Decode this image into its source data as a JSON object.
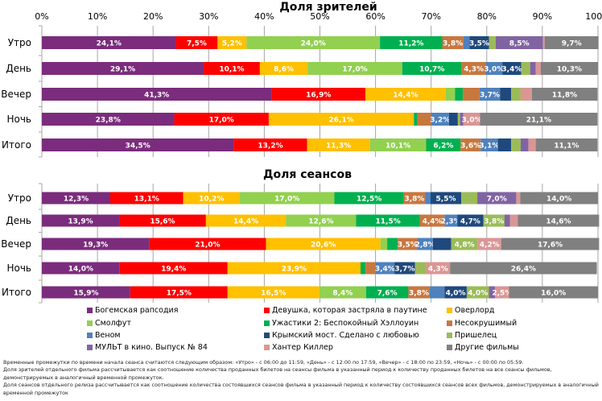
{
  "chart_data": [
    {
      "type": "bar",
      "orientation": "horizontal",
      "stacked": "percent",
      "title": "Доля зрителей",
      "xlabel": "",
      "ylabel": "",
      "xlim": [
        0,
        100
      ],
      "x_ticks": [
        "0%",
        "10%",
        "20%",
        "30%",
        "40%",
        "50%",
        "60%",
        "70%",
        "80%",
        "90%",
        "100%"
      ],
      "grid": true,
      "categories": [
        "Утро",
        "День",
        "Вечер",
        "Ночь",
        "Итого"
      ],
      "series": [
        {
          "name": "Богемская рапсодия",
          "color": "#7B2C7D",
          "values": [
            24.1,
            29.1,
            41.3,
            23.8,
            34.5
          ],
          "labels": [
            "24,1%",
            "29,1%",
            "41,3%",
            "23,8%",
            "34,5%"
          ]
        },
        {
          "name": "Девушка, которая застряла в паутине",
          "color": "#FF0000",
          "values": [
            7.5,
            10.1,
            16.9,
            17.0,
            13.2
          ],
          "labels": [
            "7,5%",
            "10,1%",
            "16,9%",
            "17,0%",
            "13,2%"
          ]
        },
        {
          "name": "Оверлорд",
          "color": "#FFC000",
          "values": [
            5.2,
            8.6,
            14.4,
            26.1,
            11.3
          ],
          "labels": [
            "5,2%",
            "8,6%",
            "14,4%",
            "26,1%",
            "11,3%"
          ]
        },
        {
          "name": "Смолфут",
          "color": "#92D050",
          "values": [
            24.0,
            17.0,
            1.7,
            0.0,
            10.1
          ],
          "labels": [
            "24,0%",
            "17,0%",
            "",
            "",
            "10,1%"
          ]
        },
        {
          "name": "Ужастики 2: Беспокойный Хэллоуин",
          "color": "#00B050",
          "values": [
            11.2,
            10.7,
            1.4,
            0.6,
            6.2
          ],
          "labels": [
            "11,2%",
            "10,7%",
            "",
            "",
            "6,2%"
          ]
        },
        {
          "name": "Несокрушимый",
          "color": "#C8773F",
          "values": [
            3.8,
            4.3,
            3.0,
            2.5,
            3.6
          ],
          "labels": [
            "3,8%",
            "4,3%",
            "",
            "",
            "3,6%"
          ]
        },
        {
          "name": "Веном",
          "color": "#4F81BD",
          "values": [
            1.1,
            3.0,
            3.7,
            3.2,
            3.1
          ],
          "labels": [
            "",
            "3,0%",
            "3,7%",
            "3,2%",
            "3,1%"
          ]
        },
        {
          "name": "Крымский мост. Сделано с любовью",
          "color": "#1F497D",
          "values": [
            3.5,
            3.4,
            2.0,
            1.6,
            2.4
          ],
          "labels": [
            "3,5%",
            "3,4%",
            "",
            "",
            ""
          ]
        },
        {
          "name": "Пришелец",
          "color": "#9BBB59",
          "values": [
            1.2,
            1.6,
            1.7,
            0.4,
            1.7
          ],
          "labels": [
            "",
            "",
            "",
            "",
            ""
          ]
        },
        {
          "name": "МУЛЬТ в кино. Выпуск № 84",
          "color": "#8064A2",
          "values": [
            8.5,
            1.0,
            0.0,
            0.6,
            1.4
          ],
          "labels": [
            "8,5%",
            "",
            "",
            "",
            ""
          ]
        },
        {
          "name": "Хантер Киллер",
          "color": "#DA9694",
          "values": [
            0.3,
            0.9,
            2.0,
            3.0,
            1.3
          ],
          "labels": [
            "",
            "",
            "",
            "3,0%",
            ""
          ]
        },
        {
          "name": "Другие фильмы",
          "color": "#808080",
          "values": [
            9.7,
            10.3,
            11.8,
            21.1,
            11.1
          ],
          "labels": [
            "9,7%",
            "10,3%",
            "11,8%",
            "21,1%",
            "11,1%"
          ]
        }
      ]
    },
    {
      "type": "bar",
      "orientation": "horizontal",
      "stacked": "percent",
      "title": "Доля сеансов",
      "xlabel": "",
      "ylabel": "",
      "xlim": [
        0,
        100
      ],
      "grid": true,
      "categories": [
        "Утро",
        "День",
        "Вечер",
        "Ночь",
        "Итого"
      ],
      "series": [
        {
          "name": "Богемская рапсодия",
          "color": "#7B2C7D",
          "values": [
            12.3,
            13.9,
            19.3,
            14.0,
            15.9
          ],
          "labels": [
            "12,3%",
            "13,9%",
            "19,3%",
            "14,0%",
            "15,9%"
          ]
        },
        {
          "name": "Девушка, которая застряла в паутине",
          "color": "#FF0000",
          "values": [
            13.1,
            15.6,
            21.0,
            19.4,
            17.5
          ],
          "labels": [
            "13,1%",
            "15,6%",
            "21,0%",
            "19,4%",
            "17,5%"
          ]
        },
        {
          "name": "Оверлорд",
          "color": "#FFC000",
          "values": [
            10.2,
            14.4,
            20.6,
            23.9,
            16.5
          ],
          "labels": [
            "10,2%",
            "14,4%",
            "20,6%",
            "23,9%",
            "16,5%"
          ]
        },
        {
          "name": "Смолфут",
          "color": "#92D050",
          "values": [
            17.0,
            12.6,
            1.2,
            0.0,
            8.4
          ],
          "labels": [
            "17,0%",
            "12,6%",
            "",
            "",
            "8,4%"
          ]
        },
        {
          "name": "Ужастики 2: Беспокойный Хэллоуин",
          "color": "#00B050",
          "values": [
            12.5,
            11.5,
            1.9,
            0.9,
            7.6
          ],
          "labels": [
            "12,5%",
            "11,5%",
            "",
            "",
            "7,6%"
          ]
        },
        {
          "name": "Несокрушимый",
          "color": "#C8773F",
          "values": [
            3.8,
            4.4,
            3.5,
            1.8,
            3.8
          ],
          "labels": [
            "3,8%",
            "4,4%",
            "3,5%",
            "",
            "3,8%"
          ]
        },
        {
          "name": "Веном",
          "color": "#4F81BD",
          "values": [
            1.0,
            2.3,
            2.8,
            3.4,
            2.7
          ],
          "labels": [
            "",
            "2,3%",
            "2,8%",
            "3,4%",
            ""
          ]
        },
        {
          "name": "Крымский мост. Сделано с любовью",
          "color": "#1F497D",
          "values": [
            5.5,
            4.7,
            3.3,
            3.7,
            4.0
          ],
          "labels": [
            "5,5%",
            "4,7%",
            "",
            "3,7%",
            "4,0%"
          ]
        },
        {
          "name": "Пришелец",
          "color": "#9BBB59",
          "values": [
            2.9,
            3.8,
            4.8,
            2.0,
            4.0
          ],
          "labels": [
            "",
            "3,8%",
            "4,8%",
            "",
            "4,0%"
          ]
        },
        {
          "name": "МУЛЬТ в кино. Выпуск № 84",
          "color": "#8064A2",
          "values": [
            7.0,
            1.0,
            0.0,
            0.0,
            1.1
          ],
          "labels": [
            "7,0%",
            "",
            "",
            "",
            ""
          ]
        },
        {
          "name": "Хантер Киллер",
          "color": "#DA9694",
          "values": [
            0.7,
            1.4,
            4.2,
            4.3,
            2.5
          ],
          "labels": [
            "",
            "",
            "4,2%",
            "4,3%",
            "2,5%"
          ]
        },
        {
          "name": "Другие фильмы",
          "color": "#808080",
          "values": [
            14.0,
            14.6,
            17.6,
            26.4,
            16.0
          ],
          "labels": [
            "14,0%",
            "14,6%",
            "17,6%",
            "26,4%",
            "16,0%"
          ]
        }
      ]
    }
  ],
  "legend": {
    "placement": "bottom",
    "items": [
      {
        "name": "Богемская рапсодия",
        "color": "#7B2C7D"
      },
      {
        "name": "Девушка, которая застряла в паутине",
        "color": "#FF0000"
      },
      {
        "name": "Оверлорд",
        "color": "#FFC000"
      },
      {
        "name": "Смолфут",
        "color": "#92D050"
      },
      {
        "name": "Ужастики 2: Беспокойный Хэллоуин",
        "color": "#00B050"
      },
      {
        "name": "Несокрушимый",
        "color": "#C8773F"
      },
      {
        "name": "Веном",
        "color": "#4F81BD"
      },
      {
        "name": "Крымский мост. Сделано с любовью",
        "color": "#1F497D"
      },
      {
        "name": "Пришелец",
        "color": "#9BBB59"
      },
      {
        "name": "МУЛЬТ в кино. Выпуск № 84",
        "color": "#8064A2"
      },
      {
        "name": "Хантер Киллер",
        "color": "#DA9694"
      },
      {
        "name": "Другие фильмы",
        "color": "#808080"
      }
    ]
  },
  "footnote": [
    "Временные промежутки по времени начала сеанса считаются следующим образом: «Утро» - с 06:00 до 11:59, «День» - с 12:00 по 17:59, «Вечер» - с 18:00 по 23:59, «Ночь» - с 00:00 по 05:59.",
    "Доля зрителей отдельного фильма рассчитывается как соотношение количества проданных билетов на сеансы фильма в указанный период к количеству проданных билетов на все сеансы фильмов, демонстрируемых в аналогичный временной промежуток.",
    "Доля сеансов отдельного релиза рассчитывается как соотношение количества состоявшихся сеансов фильма в указанный период к количеству состоявшихся сеансов всех фильмов, демонстрируемых в аналогичный временной промежуток"
  ]
}
